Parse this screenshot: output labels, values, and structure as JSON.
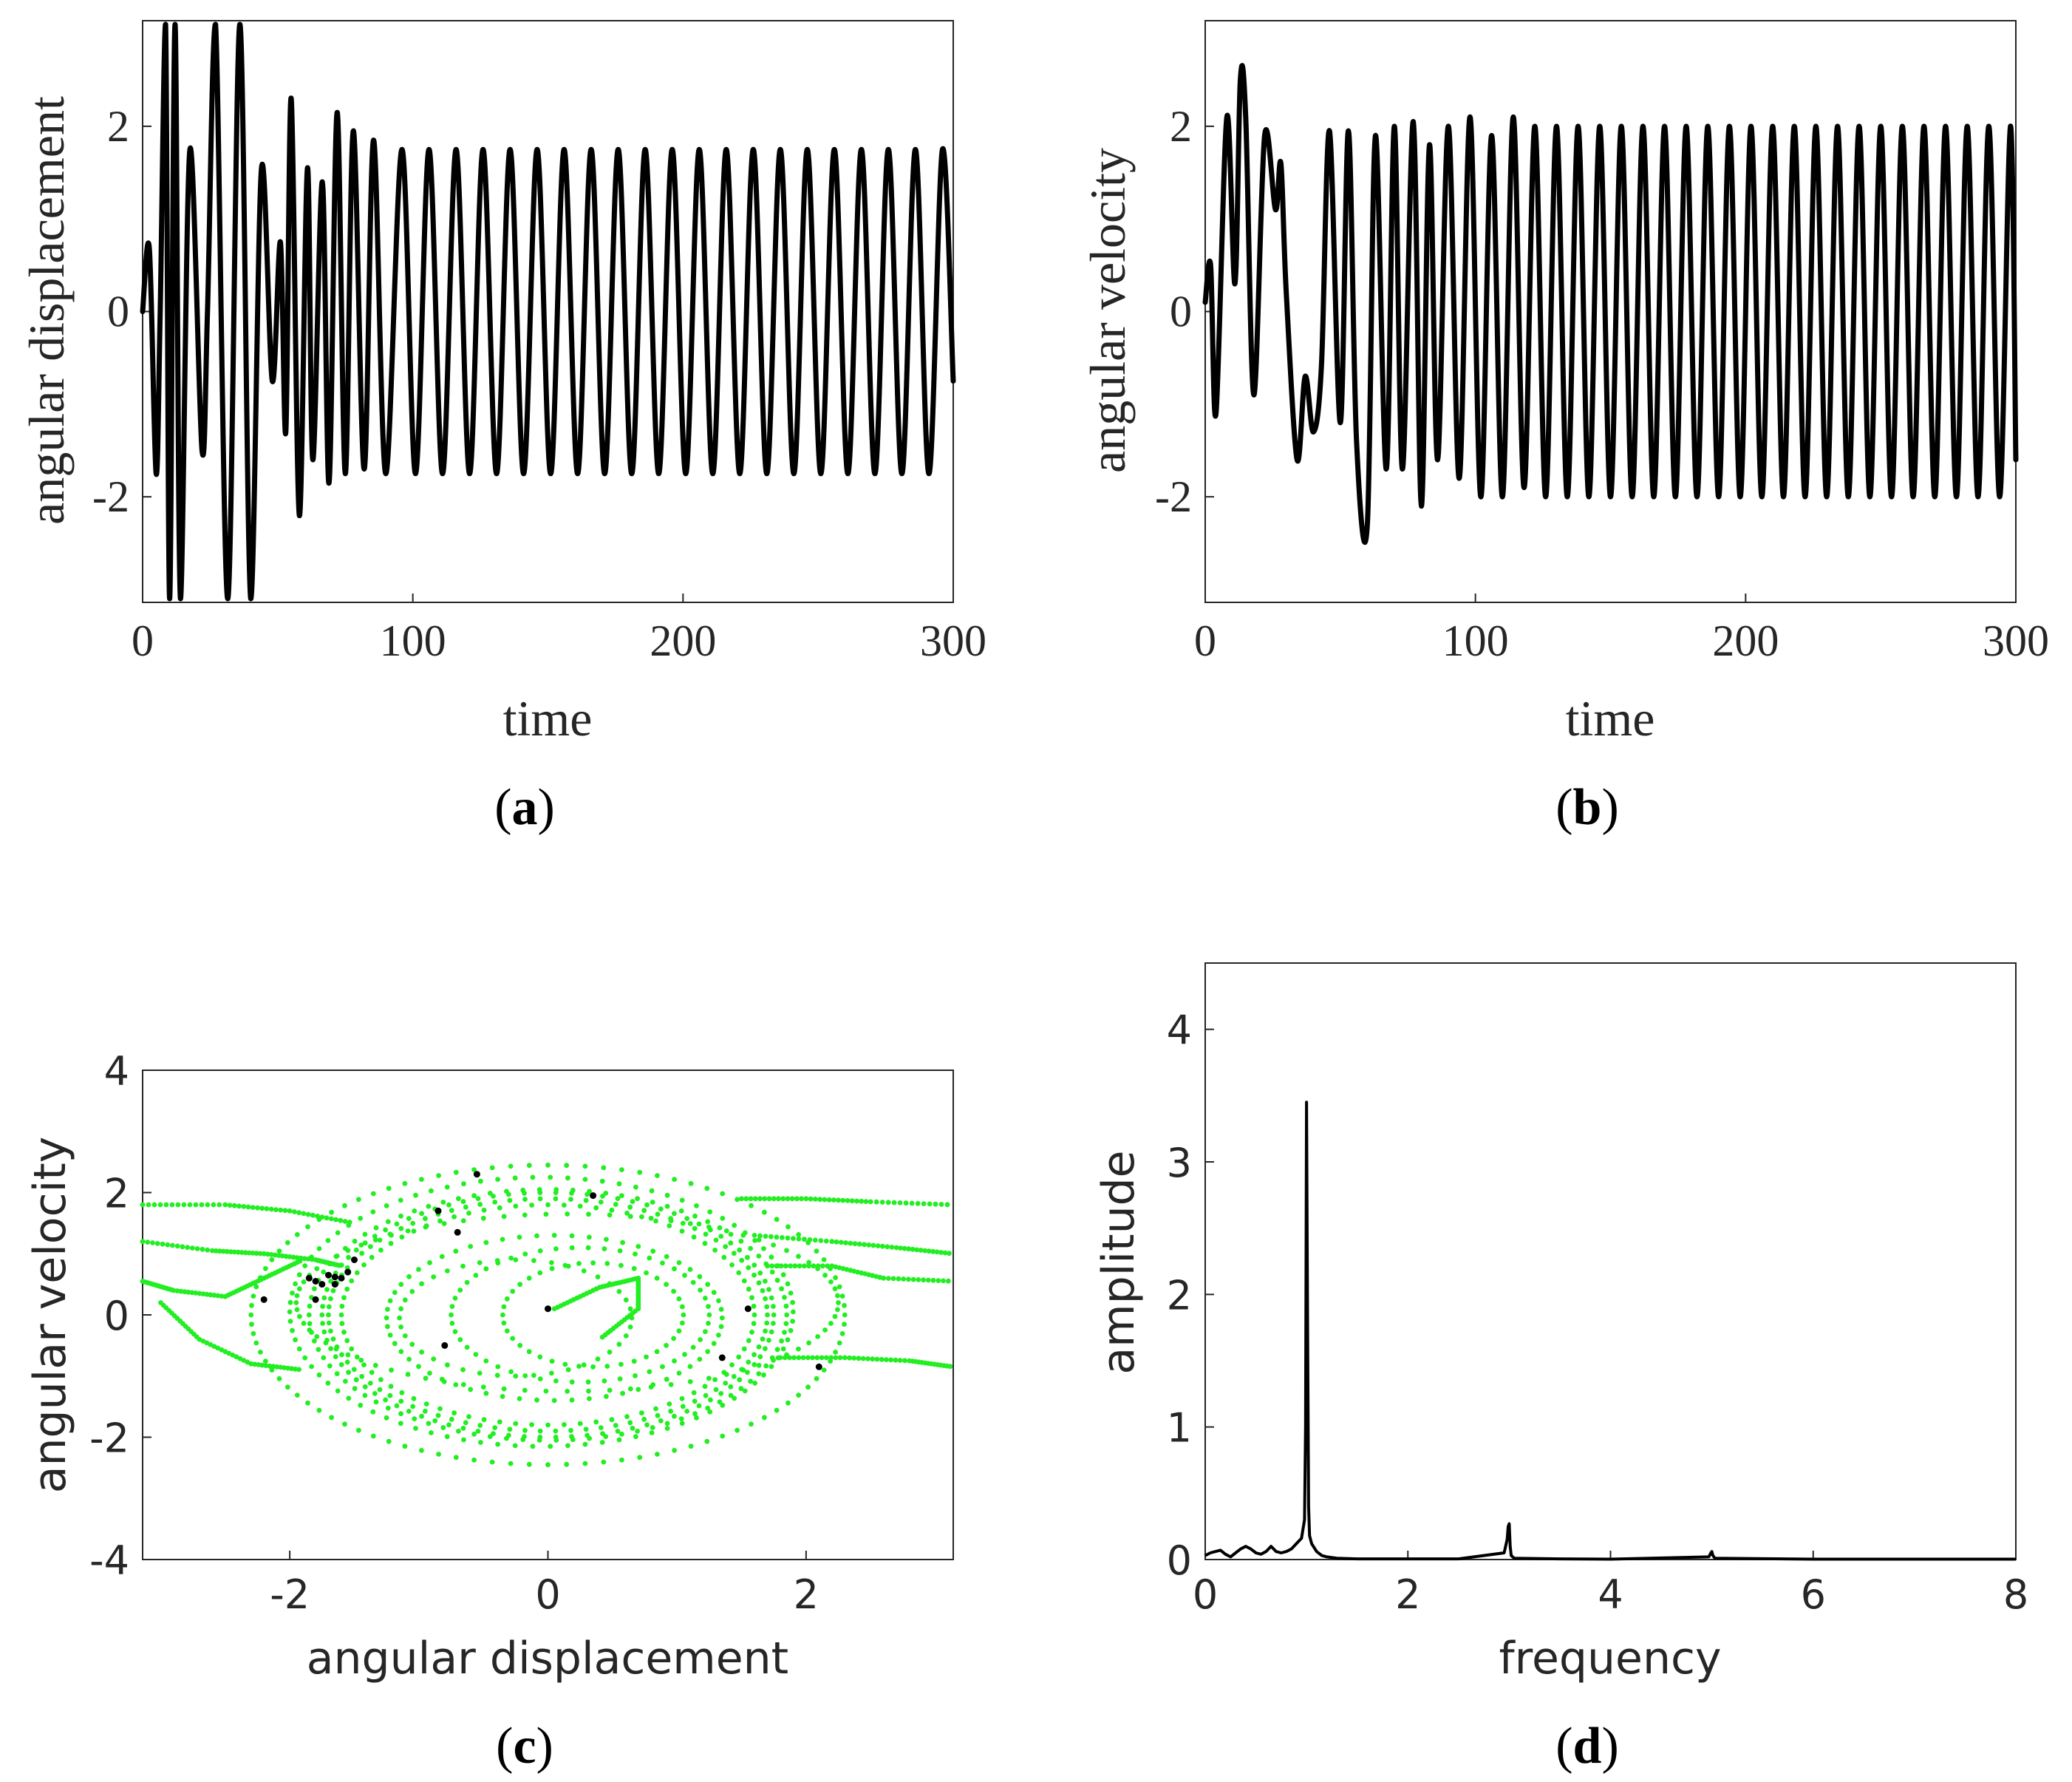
{
  "colors": {
    "trace": "#000000",
    "phase_points": "#22ee22",
    "section_points": "#000000",
    "axes": "#262626"
  },
  "chart_data": [
    {
      "id": "a",
      "type": "line",
      "caption": "(a)",
      "caption_letter": "a",
      "xlabel": "time",
      "ylabel": "angular displacement",
      "xlim": [
        0,
        300
      ],
      "ylim": [
        -3.14,
        3.14
      ],
      "xticks": [
        0,
        100,
        200,
        300
      ],
      "xtick_labels": [
        "0",
        "100",
        "200",
        "300"
      ],
      "yticks": [
        -2,
        0,
        2
      ],
      "ytick_labels": [
        "-2",
        "0",
        "2"
      ],
      "series": [
        {
          "name": "angular displacement",
          "x": [
            0,
            2.5,
            5,
            6.5,
            8.5,
            10,
            12,
            14,
            17.5,
            22,
            24,
            27,
            31.5,
            36,
            40,
            44,
            48,
            51,
            53,
            55,
            58,
            61,
            63,
            66.5,
            69,
            72,
            75,
            78,
            82,
            85.5,
            90,
            96,
            101,
            106,
            111,
            116,
            121,
            126,
            131,
            136,
            141,
            146,
            151,
            156,
            161,
            166,
            171,
            176,
            181,
            186,
            191,
            196,
            201,
            206,
            211,
            216,
            221,
            226,
            231,
            236,
            241,
            246,
            251,
            256,
            261,
            266,
            271,
            276,
            281,
            286,
            291,
            296,
            300
          ],
          "y": [
            0,
            0.68,
            -1.75,
            0,
            3.1,
            -3.1,
            3.1,
            -3.1,
            1.75,
            -1.5,
            0,
            3.1,
            -3.1,
            3.1,
            -3.1,
            1.55,
            -0.75,
            0.75,
            -1.3,
            2.3,
            -2.2,
            1.55,
            -1.6,
            1.4,
            -1.85,
            2.15,
            -1.75,
            1.95,
            -1.7,
            1.85,
            -1.75,
            1.75,
            -1.75,
            1.75,
            -1.75,
            1.75,
            -1.75,
            1.75,
            -1.75,
            1.75,
            -1.75,
            1.75,
            -1.75,
            1.75,
            -1.75,
            1.75,
            -1.75,
            1.75,
            -1.75,
            1.75,
            -1.75,
            1.75,
            -1.75,
            1.75,
            -1.75,
            1.75,
            -1.75,
            1.75,
            -1.75,
            1.75,
            -1.75,
            1.75,
            -1.75,
            1.75,
            -1.75,
            1.75,
            -1.75,
            1.75,
            -1.75,
            1.75,
            -1.75,
            1.75,
            -0.75
          ]
        }
      ]
    },
    {
      "id": "b",
      "type": "line",
      "caption": "(b)",
      "caption_letter": "b",
      "xlabel": "time",
      "ylabel": "angular velocity",
      "xlim": [
        0,
        300
      ],
      "ylim": [
        -3.14,
        3.14
      ],
      "xticks": [
        0,
        100,
        200,
        300
      ],
      "xtick_labels": [
        "0",
        "100",
        "200",
        "300"
      ],
      "yticks": [
        -2,
        0,
        2
      ],
      "ytick_labels": [
        "-2",
        "0",
        "2"
      ],
      "series": [
        {
          "name": "angular velocity",
          "x": [
            0,
            2,
            4,
            8,
            11,
            13,
            15,
            18,
            22,
            26,
            28,
            30,
            34,
            37,
            40,
            43,
            46,
            50,
            53,
            56,
            60,
            63,
            67,
            70,
            73,
            77,
            80,
            83,
            86,
            90,
            94,
            98,
            102,
            106,
            110,
            114,
            118,
            122,
            126,
            130,
            134,
            138,
            142,
            146,
            150,
            154,
            158,
            162,
            166,
            170,
            174,
            178,
            182,
            186,
            190,
            194,
            198,
            202,
            206,
            210,
            214,
            218,
            222,
            226,
            230,
            234,
            238,
            242,
            246,
            250,
            254,
            258,
            262,
            266,
            270,
            274,
            278,
            282,
            286,
            290,
            294,
            298,
            300
          ],
          "y": [
            0.1,
            0.5,
            -1.1,
            2.1,
            0.3,
            2.5,
            2.1,
            -0.9,
            1.9,
            1.1,
            1.6,
            0.2,
            -1.6,
            -0.7,
            -1.3,
            -0.6,
            1.95,
            -1.2,
            1.95,
            -1.4,
            -2.3,
            1.9,
            -1.7,
            2.0,
            -1.7,
            2.05,
            -2.1,
            1.8,
            -1.6,
            2.0,
            -1.8,
            2.1,
            -2.0,
            1.9,
            -2.0,
            2.1,
            -1.9,
            2.0,
            -2.0,
            2.0,
            -2.0,
            2.0,
            -2.0,
            2.0,
            -2.0,
            2.0,
            -2.0,
            2.0,
            -2.0,
            2.0,
            -2.0,
            2.0,
            -2.0,
            2.0,
            -2.0,
            2.0,
            -2.0,
            2.0,
            -2.0,
            2.0,
            -2.0,
            2.0,
            -2.0,
            2.0,
            -2.0,
            2.0,
            -2.0,
            2.0,
            -2.0,
            2.0,
            -2.0,
            2.0,
            -2.0,
            2.0,
            -2.0,
            2.0,
            -2.0,
            2.0,
            -2.0,
            2.0,
            -2.0,
            2.0,
            -1.6
          ]
        }
      ]
    },
    {
      "id": "c",
      "type": "scatter",
      "caption": "(c)",
      "caption_letter": "c",
      "xlabel": "angular displacement",
      "ylabel": "angular velocity",
      "xlim": [
        -3.14,
        3.14
      ],
      "ylim": [
        -4,
        4
      ],
      "xticks": [
        -2,
        0,
        2
      ],
      "xtick_labels": [
        "-2",
        "0",
        "2"
      ],
      "yticks": [
        -4,
        -2,
        0,
        2,
        4
      ],
      "ytick_labels": [
        "-4",
        "-2",
        "0",
        "2",
        "4"
      ],
      "series": [
        {
          "name": "phase trajectory (green dots)",
          "orbits": [
            {
              "cx": 0,
              "cy": 0,
              "a": 1.75,
              "b": 2.0,
              "n": 90
            },
            {
              "cx": 0,
              "cy": 0,
              "a": 1.7,
              "b": 1.9,
              "n": 90
            },
            {
              "cx": 0,
              "cy": 0,
              "a": 1.85,
              "b": 2.05,
              "n": 90
            },
            {
              "cx": 0,
              "cy": 0,
              "a": 1.6,
              "b": 1.8,
              "n": 80
            },
            {
              "cx": -0.05,
              "cy": 0.05,
              "a": 1.95,
              "b": 2.2,
              "n": 90
            },
            {
              "cx": 0,
              "cy": 0,
              "a": 2.3,
              "b": 2.45,
              "n": 100
            },
            {
              "cx": 0.15,
              "cy": 0.2,
              "a": 2.1,
              "b": 1.45,
              "n": 80
            },
            {
              "cx": 0.05,
              "cy": -0.05,
              "a": 1.3,
              "b": 1.35,
              "n": 60
            },
            {
              "cx": 0.25,
              "cy": 0,
              "a": 1.0,
              "b": 1.1,
              "n": 50
            },
            {
              "cx": 0.35,
              "cy": 0,
              "a": 0.7,
              "b": 0.85,
              "n": 40
            },
            {
              "cx": -0.25,
              "cy": -0.05,
              "a": 0.9,
              "b": 0.95,
              "n": 40
            }
          ],
          "open_curves": [
            {
              "x": [
                -3.14,
                -2.5,
                -2.0,
                -1.5
              ],
              "y": [
                1.8,
                1.8,
                1.7,
                1.5
              ]
            },
            {
              "x": [
                -3.14,
                -2.6,
                -2.2,
                -1.8,
                -1.6
              ],
              "y": [
                1.2,
                1.05,
                1.0,
                0.9,
                0.8
              ]
            },
            {
              "x": [
                -3.14,
                -2.9,
                -2.5,
                -2.2,
                -1.9
              ],
              "y": [
                0.55,
                0.4,
                0.3,
                0.6,
                0.9
              ]
            },
            {
              "x": [
                -3.0,
                -2.7,
                -2.3,
                -1.9
              ],
              "y": [
                0.2,
                -0.4,
                -0.8,
                -0.9
              ]
            },
            {
              "x": [
                1.5,
                2.0,
                2.5,
                3.14
              ],
              "y": [
                1.9,
                1.9,
                1.85,
                1.8
              ]
            },
            {
              "x": [
                1.6,
                2.2,
                2.7,
                3.14
              ],
              "y": [
                1.3,
                1.2,
                1.1,
                1.0
              ]
            },
            {
              "x": [
                1.7,
                2.2,
                2.6,
                3.14
              ],
              "y": [
                0.8,
                0.8,
                0.6,
                0.55
              ]
            },
            {
              "x": [
                1.8,
                2.3,
                2.8,
                3.14
              ],
              "y": [
                -0.7,
                -0.7,
                -0.75,
                -0.85
              ]
            },
            {
              "x": [
                0.05,
                0.4,
                0.7,
                0.7,
                0.4
              ],
              "y": [
                0.1,
                0.45,
                0.6,
                0.1,
                -0.4
              ]
            }
          ]
        },
        {
          "name": "Poincare section points (black)",
          "x": [
            0.0,
            -0.55,
            0.35,
            -0.85,
            -0.7,
            -1.85,
            -1.8,
            -1.7,
            -1.65,
            -1.6,
            -1.55,
            -1.75,
            -1.65,
            -2.2,
            -1.8,
            -0.8,
            1.55,
            1.35,
            2.1,
            -1.5
          ],
          "y": [
            0.1,
            2.3,
            1.95,
            1.7,
            1.35,
            0.6,
            0.55,
            0.65,
            0.5,
            0.6,
            0.7,
            0.5,
            0.62,
            0.25,
            0.25,
            -0.5,
            0.1,
            -0.7,
            -0.85,
            0.9
          ]
        }
      ]
    },
    {
      "id": "d",
      "type": "line",
      "caption": "(d)",
      "caption_letter": "d",
      "xlabel": "frequency",
      "ylabel": "amplitude",
      "xlim": [
        0,
        8
      ],
      "ylim": [
        0,
        4.5
      ],
      "xticks": [
        0,
        2,
        4,
        6,
        8
      ],
      "xtick_labels": [
        "0",
        "2",
        "4",
        "6",
        "8"
      ],
      "yticks": [
        0,
        1,
        2,
        3,
        4
      ],
      "ytick_labels": [
        "0",
        "1",
        "2",
        "3",
        "4"
      ],
      "series": [
        {
          "name": "amplitude spectrum",
          "x": [
            0,
            0.05,
            0.1,
            0.15,
            0.2,
            0.25,
            0.3,
            0.35,
            0.4,
            0.45,
            0.5,
            0.55,
            0.6,
            0.65,
            0.7,
            0.75,
            0.8,
            0.85,
            0.9,
            0.95,
            0.98,
            0.99,
            1.0,
            1.01,
            1.02,
            1.03,
            1.05,
            1.1,
            1.15,
            1.2,
            1.3,
            1.5,
            2.0,
            2.5,
            2.95,
            2.98,
            2.99,
            3.0,
            3.01,
            3.02,
            3.05,
            3.5,
            4.0,
            4.97,
            4.99,
            5.0,
            5.01,
            5.03,
            6.0,
            7.0,
            8.0
          ],
          "y": [
            0.03,
            0.05,
            0.06,
            0.07,
            0.04,
            0.02,
            0.05,
            0.08,
            0.1,
            0.08,
            0.05,
            0.04,
            0.06,
            0.1,
            0.06,
            0.05,
            0.06,
            0.08,
            0.12,
            0.16,
            0.3,
            1.0,
            3.45,
            1.8,
            0.4,
            0.18,
            0.12,
            0.06,
            0.03,
            0.02,
            0.01,
            0.005,
            0.005,
            0.005,
            0.05,
            0.15,
            0.25,
            0.27,
            0.1,
            0.03,
            0.01,
            0.005,
            0.003,
            0.02,
            0.05,
            0.06,
            0.03,
            0.01,
            0.003,
            0.003,
            0.003
          ]
        }
      ]
    }
  ]
}
